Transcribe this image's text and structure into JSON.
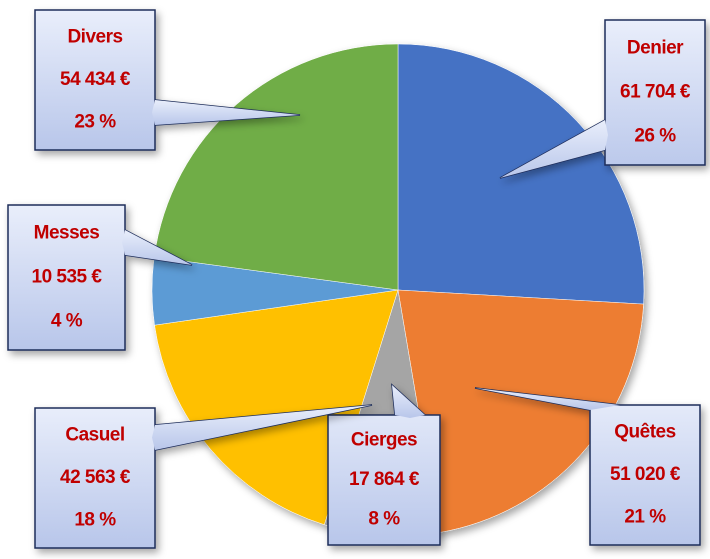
{
  "chart_data": {
    "type": "pie",
    "categories": [
      "Denier",
      "Quêtes",
      "Cierges",
      "Casuel",
      "Messes",
      "Divers"
    ],
    "values": [
      61704,
      51020,
      17864,
      42563,
      10535,
      54434
    ],
    "value_labels": [
      "61 704 €",
      "51 020 €",
      "17 864 €",
      "42 563 €",
      "10 535 €",
      "54 434 €"
    ],
    "percentages": [
      26,
      21,
      8,
      18,
      4,
      23
    ],
    "percent_labels": [
      "26 %",
      "21 %",
      "8 %",
      "18 %",
      "4 %",
      "23 %"
    ],
    "colors": [
      "#4472c4",
      "#ed7d31",
      "#a5a5a5",
      "#ffc000",
      "#5b9bd5",
      "#70ad47"
    ]
  }
}
